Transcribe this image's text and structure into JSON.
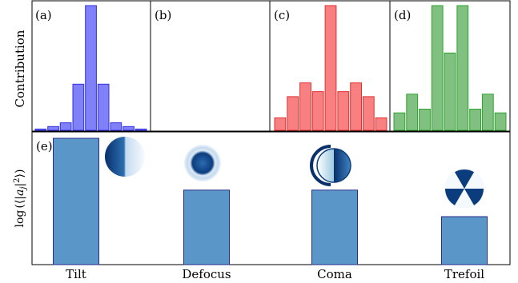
{
  "chart_data": [
    {
      "type": "bar",
      "panel_label": "(a)",
      "ylabel": "Contribution",
      "color": "#8080f8",
      "edge": "#3030e0",
      "values": [
        0.01,
        0.03,
        0.06,
        0.37,
        1.0,
        0.37,
        0.06,
        0.03,
        0.01
      ],
      "ylim": [
        0,
        1.05
      ]
    },
    {
      "type": "bar",
      "panel_label": "(b)",
      "color": "#8080f8",
      "edge": "#3030e0",
      "values": [],
      "ylim": [
        0,
        1.05
      ]
    },
    {
      "type": "bar",
      "panel_label": "(c)",
      "color": "#f88080",
      "edge": "#e03030",
      "values": [
        0.1,
        0.27,
        0.38,
        0.31,
        1.0,
        0.31,
        0.38,
        0.27,
        0.1
      ],
      "ylim": [
        0,
        1.05
      ]
    },
    {
      "type": "bar",
      "panel_label": "(d)",
      "color": "#80c080",
      "edge": "#30a030",
      "values": [
        0.14,
        0.29,
        0.17,
        1.0,
        0.62,
        1.0,
        0.17,
        0.29,
        0.14
      ],
      "ylim": [
        0,
        1.05
      ]
    },
    {
      "type": "bar",
      "panel_label": "(e)",
      "ylabel": "log(⟨|a_j|²⟩)",
      "color": "#5b96c8",
      "edge": "#2a2a8c",
      "categories": [
        "Tilt",
        "Defocus",
        "Coma",
        "Trefoil"
      ],
      "values": [
        1.0,
        0.59,
        0.59,
        0.38
      ],
      "icons": [
        "tilt-mode-icon",
        "defocus-mode-icon",
        "coma-mode-icon",
        "trefoil-mode-icon"
      ],
      "ylim": [
        0,
        1.05
      ]
    }
  ]
}
